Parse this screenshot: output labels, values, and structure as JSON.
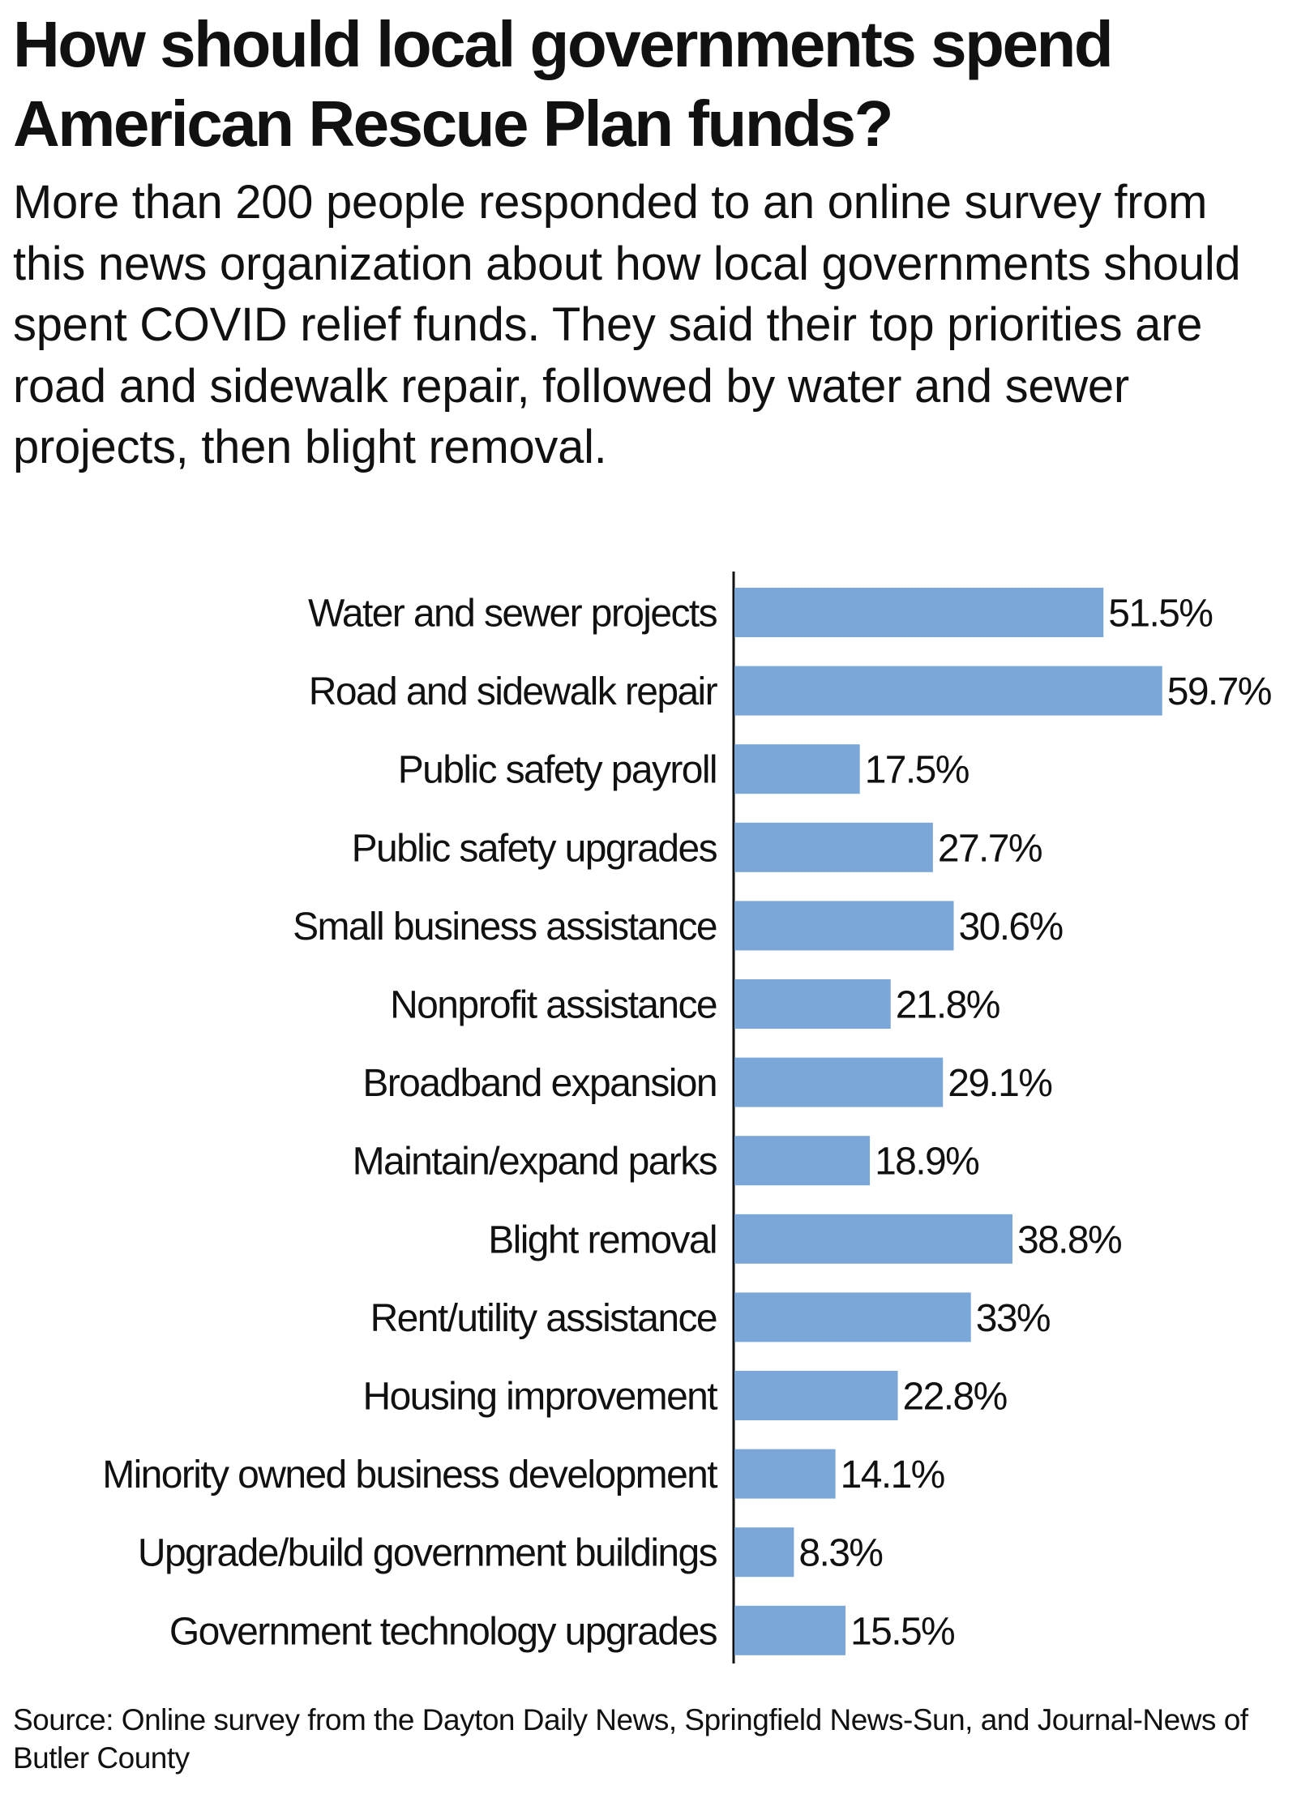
{
  "title": "How should local governments spend American Rescue Plan funds?",
  "subtitle": "More than 200 people responded to an online survey from this news organization about how local governments should spent COVID relief funds. They said their top priorities are road and sidewalk repair, followed by water and sewer projects, then blight removal.",
  "source": "Source: Online survey from the Dayton Daily News, Springfield News-Sun, and Journal-News of Butler County",
  "chart_data": {
    "type": "bar",
    "orientation": "horizontal",
    "categories": [
      "Water and sewer projects",
      "Road and sidewalk repair",
      "Public safety payroll",
      "Public safety upgrades",
      "Small business assistance",
      "Nonprofit assistance",
      "Broadband expansion",
      "Maintain/expand parks",
      "Blight removal",
      "Rent/utility assistance",
      "Housing improvement",
      "Minority owned business development",
      "Upgrade/build government buildings",
      "Government technology upgrades"
    ],
    "values": [
      51.5,
      59.7,
      17.5,
      27.7,
      30.6,
      21.8,
      29.1,
      18.9,
      38.8,
      33,
      22.8,
      14.1,
      8.3,
      15.5
    ],
    "value_labels": [
      "51.5%",
      "59.7%",
      "17.5%",
      "27.7%",
      "30.6%",
      "21.8%",
      "29.1%",
      "18.9%",
      "38.8%",
      "33%",
      "22.8%",
      "14.1%",
      "8.3%",
      "15.5%"
    ],
    "xlim": [
      0,
      70
    ],
    "grid": false,
    "bar_color": "#7BA7D8"
  }
}
